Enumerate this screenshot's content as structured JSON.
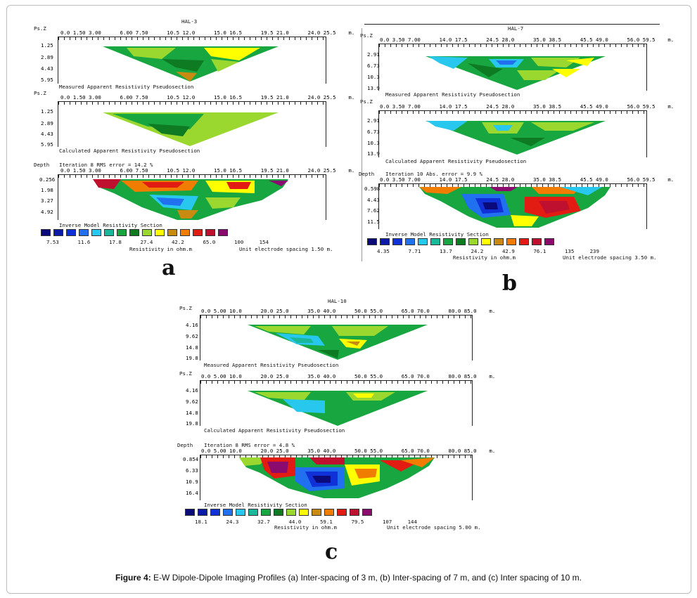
{
  "colors": {
    "legend": [
      "#0a0a7a",
      "#0c1aa8",
      "#1030d8",
      "#2070f0",
      "#28c8ee",
      "#1ab89a",
      "#17a640",
      "#0e7a22",
      "#9ad830",
      "#ffff00",
      "#c88a10",
      "#f07c00",
      "#e21c12",
      "#c01030",
      "#8a0a6e"
    ],
    "green": "#17a640",
    "light_green": "#9ad830",
    "dark_green": "#0e7a22",
    "cyan": "#28c8ee",
    "yellow": "#ffff00"
  },
  "figure_caption": {
    "label": "Figure 4:",
    "text": " E-W Dipole-Dipole Imaging Profiles (a) Inter-spacing of 3 m, (b) Inter-spacing of 7 m, and (c) Inter spacing of 10 m."
  },
  "panels": {
    "a": {
      "letter": "a",
      "title": "HAL-3",
      "psz": "Ps.Z",
      "depth": "Depth",
      "x_ticks": "0.0 1.50 3.00      6.00 7.50      10.5 12.0      15.0 16.5      19.5 21.0      24.0 25.5    m.",
      "measured_y": [
        "1.25",
        "2.89",
        "4.43",
        "5.95"
      ],
      "measured_caption": "Measured Apparent Resistivity Pseudosection",
      "calculated_y": [
        "1.25",
        "2.89",
        "4.43",
        "5.95"
      ],
      "calculated_caption": "Calculated Apparent Resistivity Pseudosection",
      "iteration": "Iteration 8 RMS error = 14.2 %",
      "inverse_y": [
        "0.256",
        "1.98",
        "3.27",
        "4.92"
      ],
      "inverse_caption": "Inverse Model Resistivity Section",
      "legend_values": "7.53      11.6      17.8      27.4      42.2      65.0      100     154",
      "resistivity_label": "Resistivity in ohm.m",
      "electrode": "Unit electrode spacing 1.50 m."
    },
    "b": {
      "letter": "b",
      "title": "HAL-7",
      "psz": "Ps.Z",
      "depth": "Depth",
      "x_ticks": "0.0 3.50 7.00      14.0 17.5      24.5 28.0      35.0 38.5      45.5 49.0      56.0 59.5    m.",
      "measured_y": [
        "2.91",
        "6.73",
        "10.3",
        "13.9"
      ],
      "measured_caption": "Measured Apparent Resistivity Pseudosection",
      "calculated_y": [
        "2.91",
        "6.73",
        "10.3",
        "13.9"
      ],
      "calculated_caption": "Calculated Apparent Resistivity Pseudosection",
      "iteration": "Iteration 10 Abs. error = 9.9 %",
      "inverse_y": [
        "0.598",
        "4.43",
        "7.62",
        "11.5"
      ],
      "inverse_caption": "Inverse Model Resistivity Section",
      "legend_values": "4.35      7.71      13.7      24.2      42.9      76.1      135     239",
      "resistivity_label": "Resistivity in ohm.m",
      "electrode": "Unit electrode spacing 3.50 m."
    },
    "c": {
      "letter": "c",
      "title": "HAL-10",
      "psz": "Ps.Z",
      "depth": "Depth",
      "x_ticks": "0.0 5.00 10.0      20.0 25.0      35.0 40.0      50.0 55.0      65.0 70.0      80.0 85.0    m.",
      "measured_y": [
        "4.16",
        "9.62",
        "14.8",
        "19.8"
      ],
      "measured_caption": "Measured Apparent Resistivity Pseudosection",
      "calculated_y": [
        "4.16",
        "9.62",
        "14.8",
        "19.8"
      ],
      "calculated_caption": "Calculated Apparent Resistivity Pseudosection",
      "iteration": "Iteration 8 RMS error = 4.8 %",
      "inverse_y": [
        "0.854",
        "6.33",
        "10.9",
        "16.4"
      ],
      "inverse_caption": "Inverse Model Resistivity Section",
      "legend_values": "18.1      24.3      32.7      44.0      59.1      79.5      107     144",
      "resistivity_label": "Resistivity in ohm.m",
      "electrode": "Unit electrode spacing 5.00 m."
    }
  }
}
